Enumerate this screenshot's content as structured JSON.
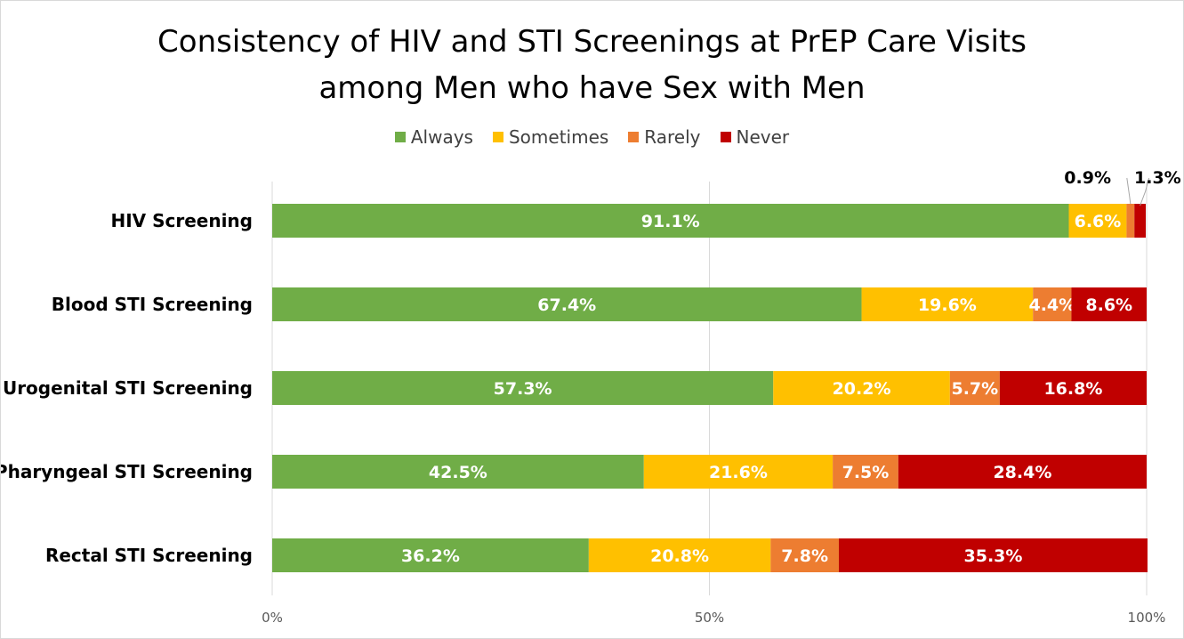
{
  "chart_data": {
    "type": "bar",
    "orientation": "horizontal",
    "stacked": "percent",
    "title": "Consistency of HIV and STI Screenings at PrEP Care Visits among Men who have Sex with Men",
    "title_lines": [
      "Consistency of HIV and STI Screenings at PrEP Care Visits",
      "among Men who have Sex with Men"
    ],
    "categories": [
      "HIV Screening",
      "Blood STI Screening",
      "Urogenital STI Screening",
      "Pharyngeal STI Screening",
      "Rectal STI Screening"
    ],
    "series": [
      {
        "name": "Always",
        "color": "#70AD47",
        "values": [
          91.1,
          67.4,
          57.3,
          42.5,
          36.2
        ],
        "labels": [
          "91.1%",
          "67.4%",
          "57.3%",
          "42.5%",
          "36.2%"
        ]
      },
      {
        "name": "Sometimes",
        "color": "#FFC000",
        "values": [
          6.6,
          19.6,
          20.2,
          21.6,
          20.8
        ],
        "labels": [
          "6.6%",
          "19.6%",
          "20.2%",
          "21.6%",
          "20.8%"
        ]
      },
      {
        "name": "Rarely",
        "color": "#ED7D31",
        "values": [
          0.9,
          4.4,
          5.7,
          7.5,
          7.8
        ],
        "labels": [
          "0.9%",
          "4.4%",
          "5.7%",
          "7.5%",
          "7.8%"
        ]
      },
      {
        "name": "Never",
        "color": "#C00000",
        "values": [
          1.3,
          8.6,
          16.8,
          28.4,
          35.3
        ],
        "labels": [
          "1.3%",
          "8.6%",
          "16.8%",
          "28.4%",
          "35.3%"
        ]
      }
    ],
    "xaxis": {
      "ticks": [
        "0%",
        "50%",
        "100%"
      ]
    },
    "xlim": [
      0,
      100
    ],
    "grid": true,
    "legend_position": "top"
  }
}
